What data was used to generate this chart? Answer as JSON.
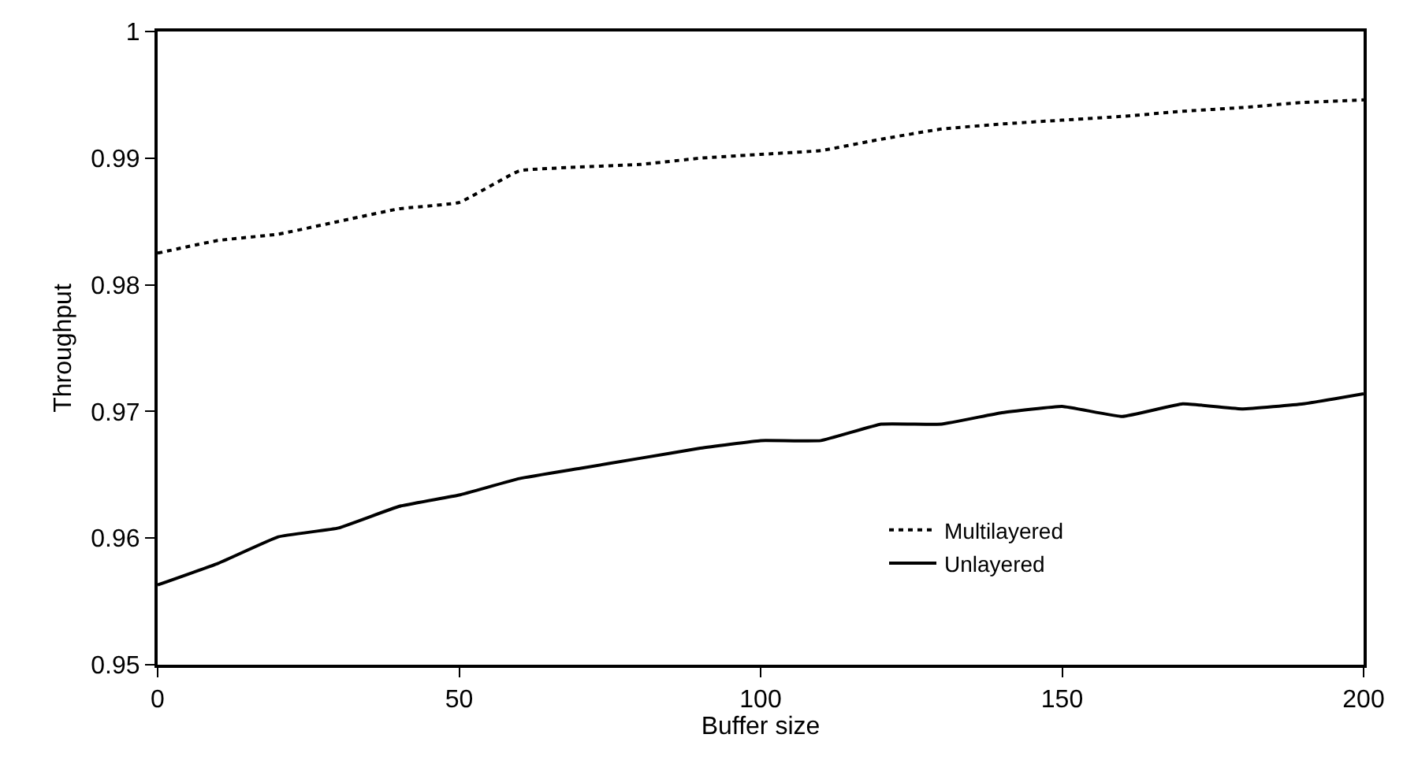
{
  "chart_data": {
    "type": "line",
    "xlabel": "Buffer size",
    "ylabel": "Throughput",
    "x": [
      0,
      10,
      20,
      30,
      40,
      50,
      60,
      70,
      80,
      90,
      100,
      110,
      120,
      130,
      140,
      150,
      160,
      170,
      180,
      190,
      200
    ],
    "series": [
      {
        "name": "Multilayered",
        "color": "#000000",
        "line_style": "dotted",
        "values": [
          0.9825,
          0.9835,
          0.984,
          0.985,
          0.986,
          0.9865,
          0.989,
          0.9893,
          0.9895,
          0.99,
          0.9903,
          0.9906,
          0.9915,
          0.9923,
          0.9927,
          0.993,
          0.9933,
          0.9937,
          0.994,
          0.9944,
          0.9946
        ]
      },
      {
        "name": "Unlayered",
        "color": "#000000",
        "line_style": "solid",
        "values": [
          0.9563,
          0.958,
          0.9601,
          0.9608,
          0.9625,
          0.9634,
          0.9647,
          0.9655,
          0.9663,
          0.9671,
          0.9677,
          0.9677,
          0.969,
          0.969,
          0.9699,
          0.9704,
          0.9696,
          0.9706,
          0.9702,
          0.9706,
          0.9714
        ]
      }
    ],
    "xlim": [
      0,
      200
    ],
    "xticks": [
      0,
      50,
      100,
      150,
      200
    ],
    "ylim": [
      0.95,
      1
    ],
    "yticks": [
      {
        "value": 0.95,
        "label": "0.95"
      },
      {
        "value": 0.96,
        "label": "0.96"
      },
      {
        "value": 0.97,
        "label": "0.97"
      },
      {
        "value": 0.98,
        "label": "0.98"
      },
      {
        "value": 0.99,
        "label": "0.99"
      },
      1
    ],
    "legend": "bottom right",
    "marker": "none"
  }
}
